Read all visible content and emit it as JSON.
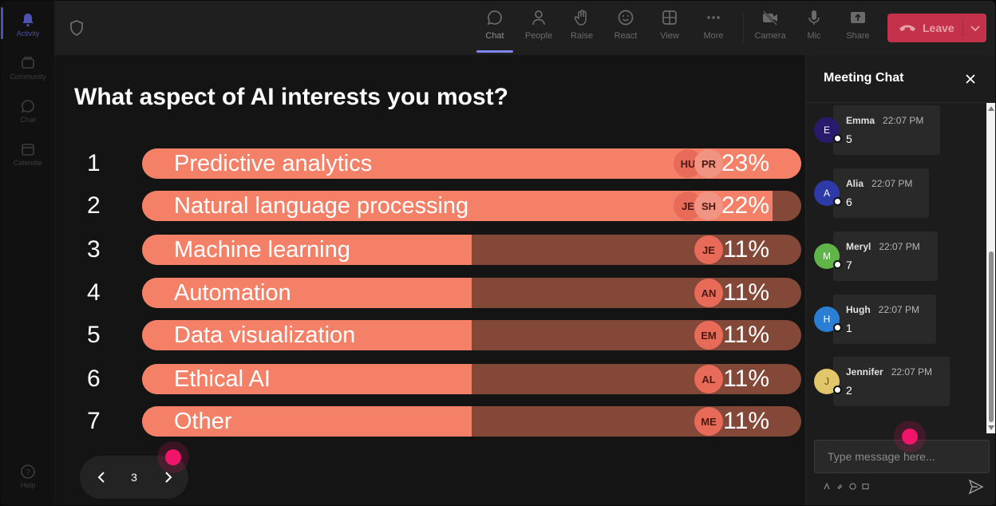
{
  "rail": {
    "items": [
      {
        "label": "Activity",
        "icon": "bell-icon",
        "active": true
      },
      {
        "label": "Community",
        "icon": "community-icon",
        "active": false
      },
      {
        "label": "Chat",
        "icon": "chat-icon",
        "active": false
      },
      {
        "label": "Calendar",
        "icon": "calendar-icon",
        "active": false
      }
    ],
    "help_label": "Help"
  },
  "toolbar": {
    "buttons": [
      {
        "label": "Chat",
        "icon": "chat-icon",
        "active": true
      },
      {
        "label": "People",
        "icon": "people-icon",
        "active": false
      },
      {
        "label": "Raise",
        "icon": "raise-hand-icon",
        "active": false
      },
      {
        "label": "React",
        "icon": "emoji-icon",
        "active": false
      },
      {
        "label": "View",
        "icon": "grid-view-icon",
        "active": false
      },
      {
        "label": "More",
        "icon": "more-icon",
        "active": false
      },
      {
        "label": "Camera",
        "icon": "camera-off-icon",
        "active": false
      },
      {
        "label": "Mic",
        "icon": "mic-icon",
        "active": false
      },
      {
        "label": "Share",
        "icon": "share-icon",
        "active": false
      }
    ],
    "leave_label": "Leave",
    "leave_color": "#c4314b"
  },
  "poll": {
    "title": "What aspect of AI interests you most?",
    "rows": [
      {
        "num": "1",
        "label": "Predictive analytics",
        "percent": "23%",
        "fill": 1.0,
        "avatars": [
          "HU",
          "PR"
        ]
      },
      {
        "num": "2",
        "label": "Natural language processing",
        "percent": "22%",
        "fill": 0.957,
        "avatars": [
          "JE",
          "SH"
        ]
      },
      {
        "num": "3",
        "label": "Machine learning",
        "percent": "11%",
        "fill": 0.5,
        "avatars": [
          "JE"
        ]
      },
      {
        "num": "4",
        "label": "Automation",
        "percent": "11%",
        "fill": 0.5,
        "avatars": [
          "AN"
        ]
      },
      {
        "num": "5",
        "label": "Data visualization",
        "percent": "11%",
        "fill": 0.5,
        "avatars": [
          "EM"
        ]
      },
      {
        "num": "6",
        "label": "Ethical AI",
        "percent": "11%",
        "fill": 0.5,
        "avatars": [
          "AL"
        ]
      },
      {
        "num": "7",
        "label": "Other",
        "percent": "11%",
        "fill": 0.5,
        "avatars": [
          "ME"
        ]
      }
    ],
    "bar_color": "#f48167",
    "track_color": "#834837",
    "page": "3"
  },
  "chat": {
    "title": "Meeting Chat",
    "messages": [
      {
        "initial": "E",
        "name": "Emma",
        "time": "22:07 PM",
        "text": "5",
        "color": "#2a1a6e"
      },
      {
        "initial": "A",
        "name": "Alia",
        "time": "22:07 PM",
        "text": "6",
        "color": "#2d3aa8"
      },
      {
        "initial": "M",
        "name": "Meryl",
        "time": "22:07 PM",
        "text": "7",
        "color": "#5fb548"
      },
      {
        "initial": "H",
        "name": "Hugh",
        "time": "22:07 PM",
        "text": "1",
        "color": "#2a7fd4"
      },
      {
        "initial": "J",
        "name": "Jennifer",
        "time": "22:07 PM",
        "text": "2",
        "color": "#e2c66a"
      }
    ],
    "compose_placeholder": "Type message here..."
  }
}
